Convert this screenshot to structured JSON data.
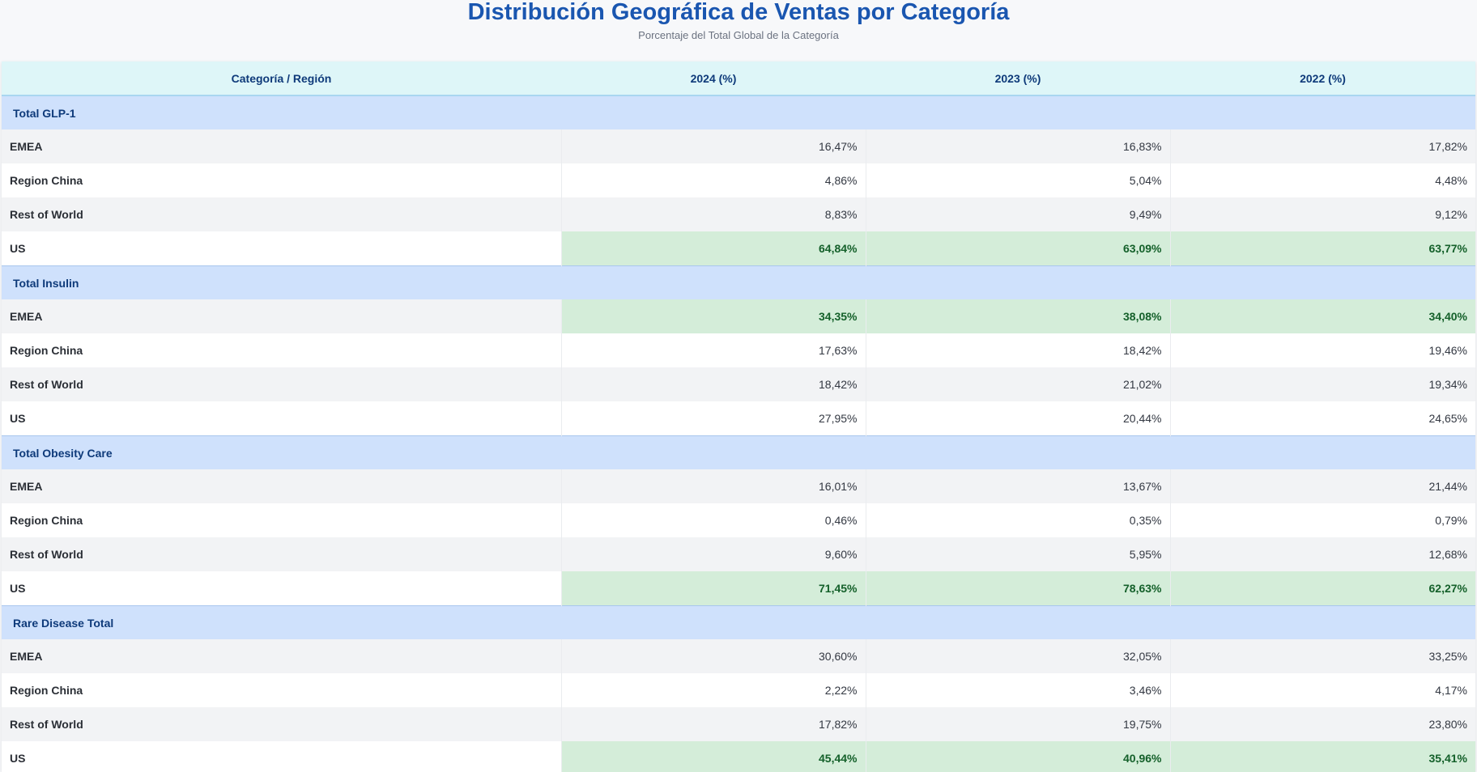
{
  "chart_data": {
    "type": "table",
    "title": "Distribución Geográfica de Ventas por Categoría",
    "subtitle": "Porcentaje del Total Global de la Categoría",
    "columns": [
      "Categoría / Región",
      "2024 (%)",
      "2023 (%)",
      "2022 (%)"
    ],
    "highlight_color": "#d4edd9",
    "category_color": "#cfe1fc",
    "header_color": "#def6f8",
    "groups": [
      {
        "category": "Total GLP-1",
        "rows": [
          {
            "region": "EMEA",
            "values": [
              "16,47%",
              "16,83%",
              "17,82%"
            ],
            "highlight": false
          },
          {
            "region": "Region China",
            "values": [
              "4,86%",
              "5,04%",
              "4,48%"
            ],
            "highlight": false
          },
          {
            "region": "Rest of World",
            "values": [
              "8,83%",
              "9,49%",
              "9,12%"
            ],
            "highlight": false
          },
          {
            "region": "US",
            "values": [
              "64,84%",
              "63,09%",
              "63,77%"
            ],
            "highlight": true
          }
        ]
      },
      {
        "category": "Total Insulin",
        "rows": [
          {
            "region": "EMEA",
            "values": [
              "34,35%",
              "38,08%",
              "34,40%"
            ],
            "highlight": true
          },
          {
            "region": "Region China",
            "values": [
              "17,63%",
              "18,42%",
              "19,46%"
            ],
            "highlight": false
          },
          {
            "region": "Rest of World",
            "values": [
              "18,42%",
              "21,02%",
              "19,34%"
            ],
            "highlight": false
          },
          {
            "region": "US",
            "values": [
              "27,95%",
              "20,44%",
              "24,65%"
            ],
            "highlight": false
          }
        ]
      },
      {
        "category": "Total Obesity Care",
        "rows": [
          {
            "region": "EMEA",
            "values": [
              "16,01%",
              "13,67%",
              "21,44%"
            ],
            "highlight": false
          },
          {
            "region": "Region China",
            "values": [
              "0,46%",
              "0,35%",
              "0,79%"
            ],
            "highlight": false
          },
          {
            "region": "Rest of World",
            "values": [
              "9,60%",
              "5,95%",
              "12,68%"
            ],
            "highlight": false
          },
          {
            "region": "US",
            "values": [
              "71,45%",
              "78,63%",
              "62,27%"
            ],
            "highlight": true
          }
        ]
      },
      {
        "category": "Rare Disease Total",
        "rows": [
          {
            "region": "EMEA",
            "values": [
              "30,60%",
              "32,05%",
              "33,25%"
            ],
            "highlight": false
          },
          {
            "region": "Region China",
            "values": [
              "2,22%",
              "3,46%",
              "4,17%"
            ],
            "highlight": false
          },
          {
            "region": "Rest of World",
            "values": [
              "17,82%",
              "19,75%",
              "23,80%"
            ],
            "highlight": false
          },
          {
            "region": "US",
            "values": [
              "45,44%",
              "40,96%",
              "35,41%"
            ],
            "highlight": true
          }
        ]
      }
    ]
  }
}
